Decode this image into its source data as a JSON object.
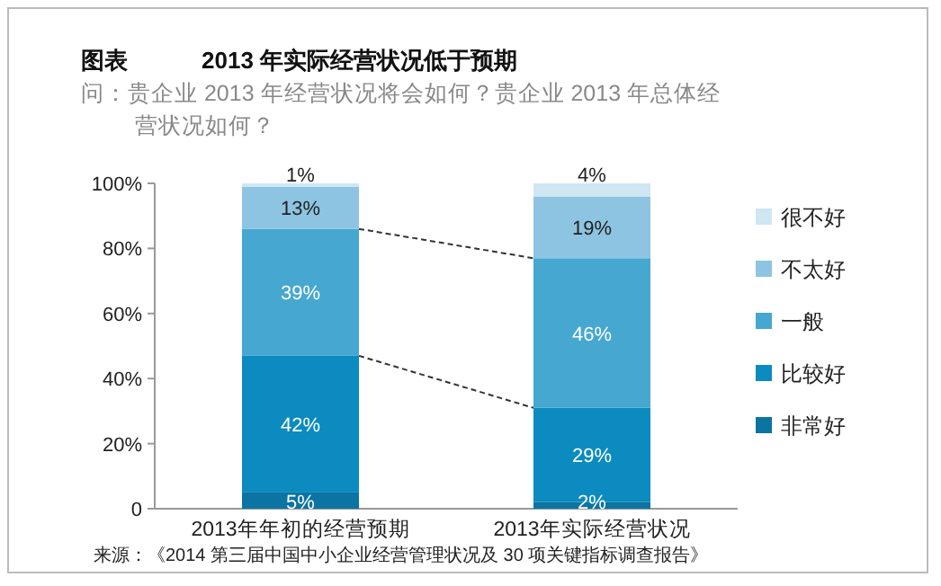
{
  "chart_data": {
    "type": "bar",
    "stacked": true,
    "title": "2013 年实际经营状况低于预期",
    "subtitle": "问：贵企业 2013 年经营状况将会如何？贵企业 2013 年总体经营状况如何？",
    "annotations": [
      "图表",
      "来源：《2014 第三届中国中小企业经营管理状况及 30 项关键指标调查报告》"
    ],
    "categories": [
      "2013年年初的经营预期",
      "2013年实际经营状况"
    ],
    "series": [
      {
        "name": "非常好",
        "color": "#0b74a2",
        "values": [
          5,
          2
        ],
        "value_labels": [
          "5%",
          "2%"
        ]
      },
      {
        "name": "比较好",
        "color": "#0b8bbf",
        "values": [
          42,
          29
        ],
        "value_labels": [
          "42%",
          "29%"
        ]
      },
      {
        "name": "一般",
        "color": "#46a7d0",
        "values": [
          39,
          46
        ],
        "value_labels": [
          "39%",
          "46%"
        ]
      },
      {
        "name": "不太好",
        "color": "#8dc4e1",
        "values": [
          13,
          19
        ],
        "value_labels": [
          "13%",
          "19%"
        ]
      },
      {
        "name": "很不好",
        "color": "#cfe6f3",
        "values": [
          1,
          4
        ],
        "value_labels": [
          "1%",
          "4%"
        ]
      }
    ],
    "ylim": [
      0,
      100
    ],
    "yticks": [
      {
        "value": 0,
        "label": "0"
      },
      {
        "value": 20,
        "label": "20%"
      },
      {
        "value": 40,
        "label": "40%"
      },
      {
        "value": 60,
        "label": "60%"
      },
      {
        "value": 80,
        "label": "80%"
      },
      {
        "value": 100,
        "label": "100%"
      }
    ],
    "grid": false,
    "legend": "right"
  }
}
